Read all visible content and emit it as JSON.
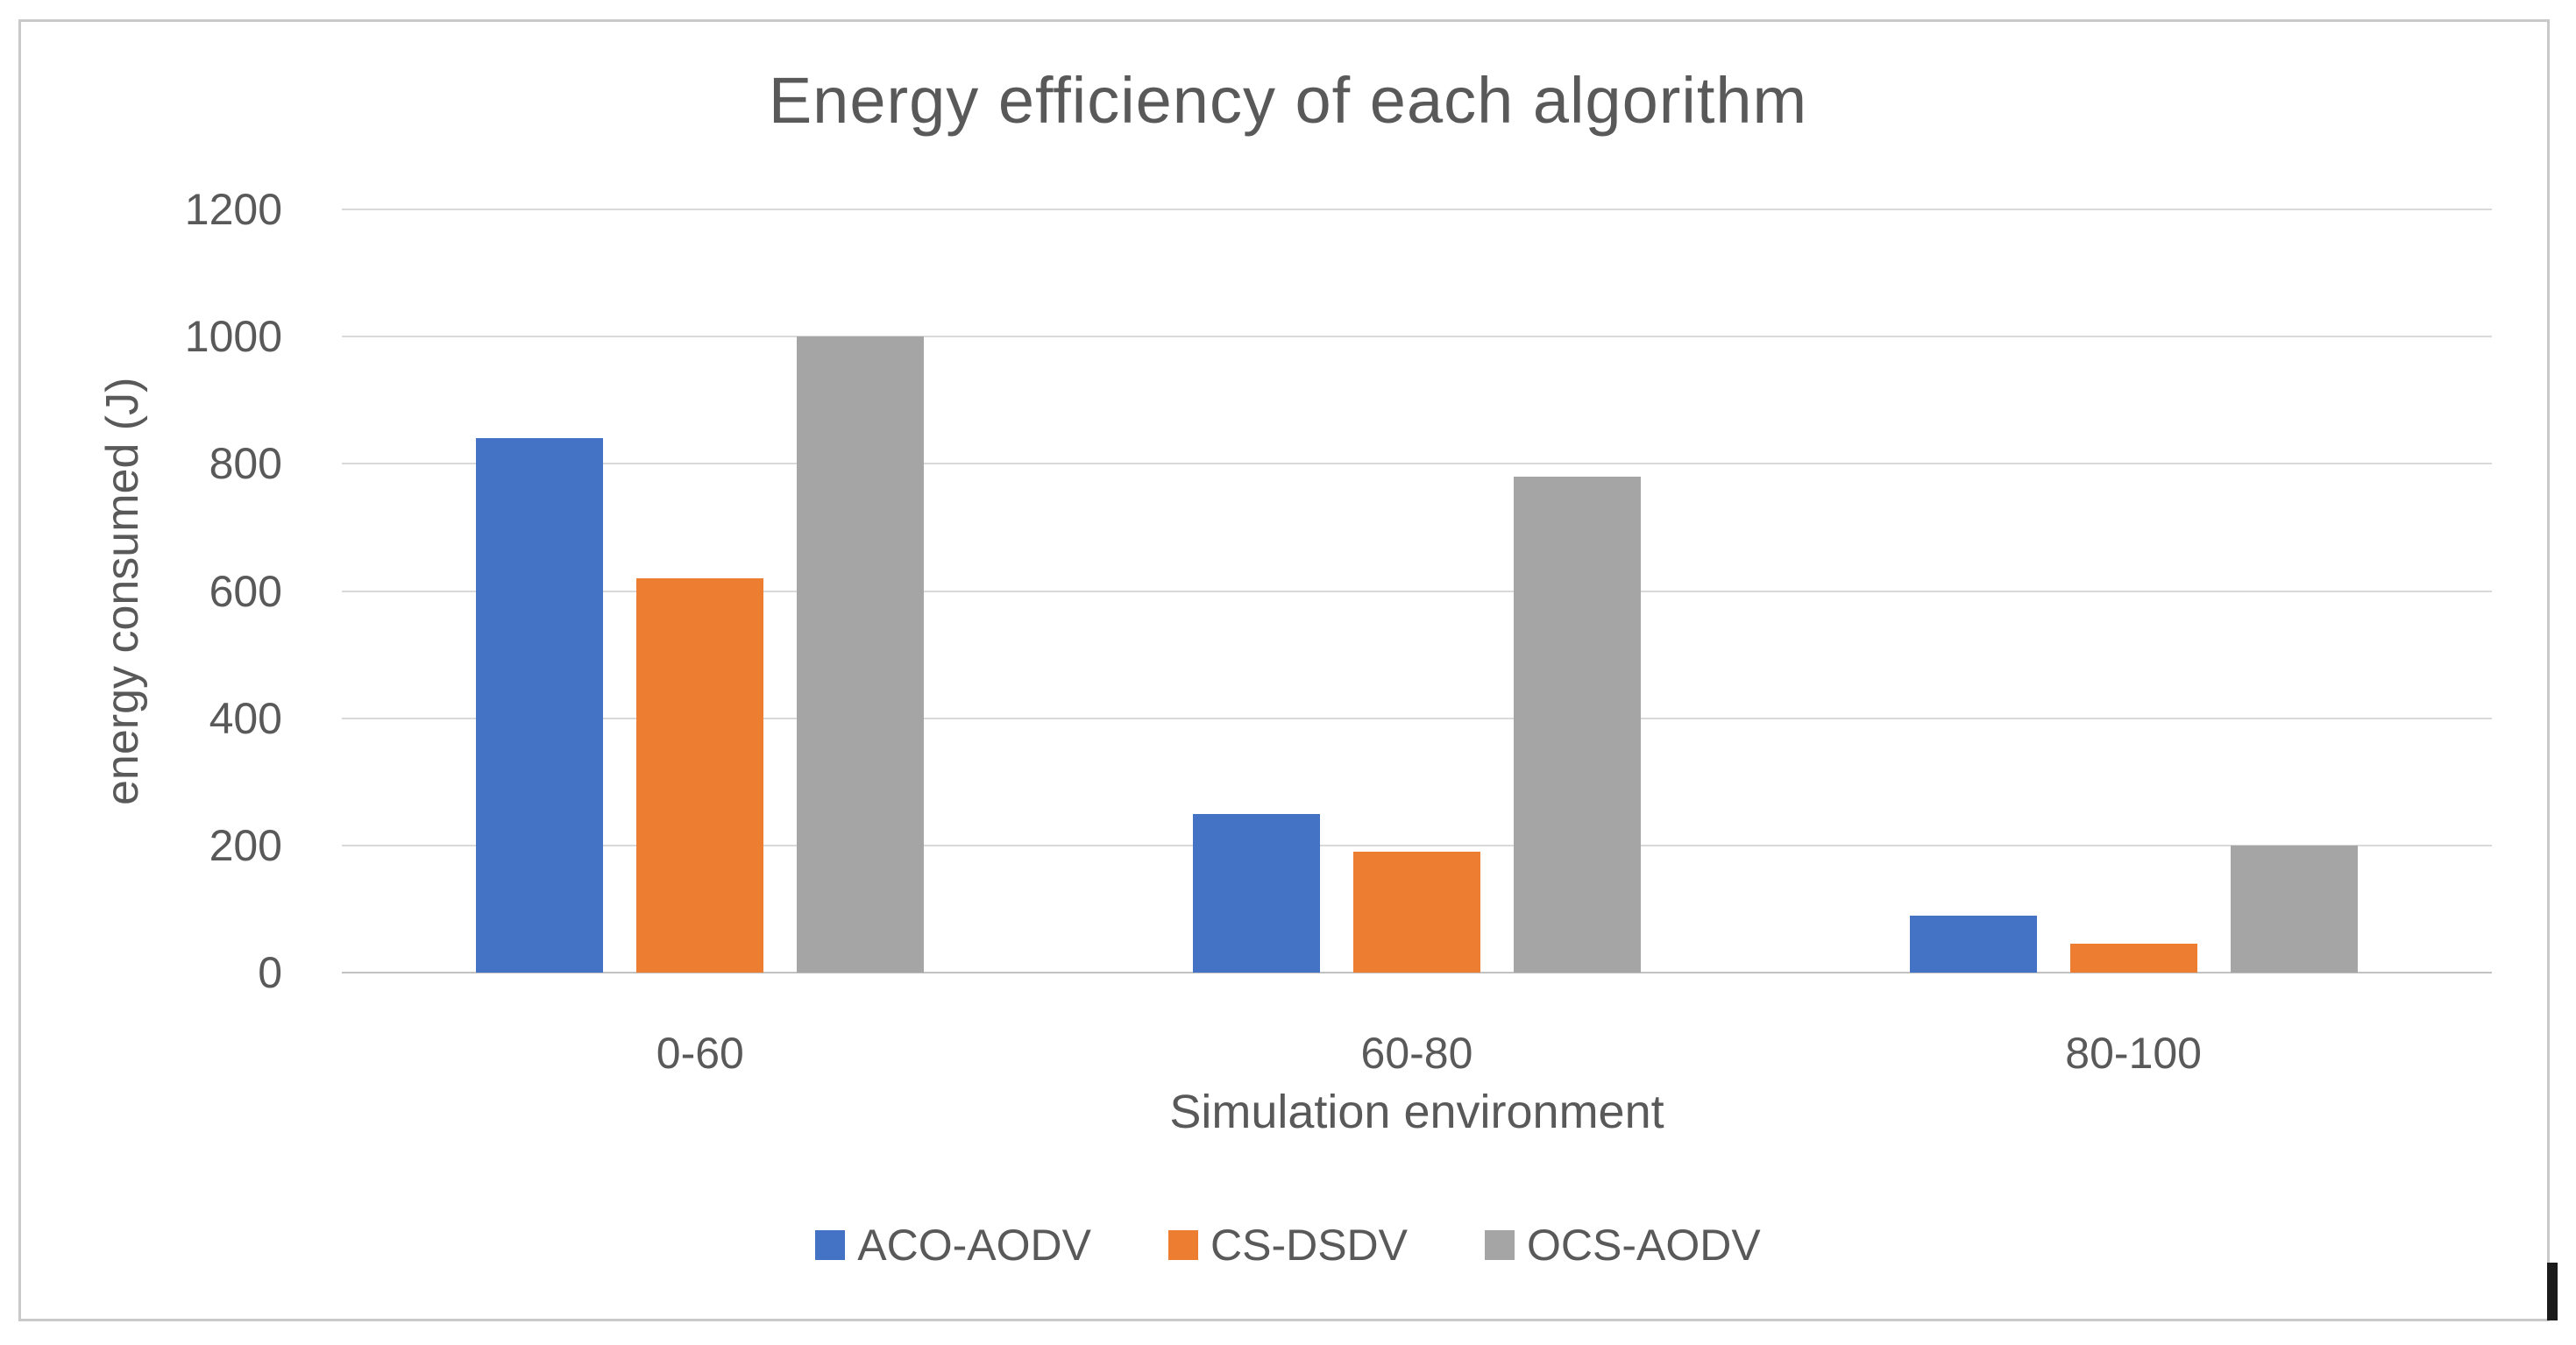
{
  "chart_data": {
    "type": "bar",
    "title": "Energy efficiency of each algorithm",
    "xlabel": "Simulation environment",
    "ylabel": "energy consumed (J)",
    "categories": [
      "0-60",
      "60-80",
      "80-100"
    ],
    "series": [
      {
        "name": "ACO-AODV",
        "color": "#4472C4",
        "values": [
          840,
          250,
          90
        ]
      },
      {
        "name": "CS-DSDV",
        "color": "#ED7D31",
        "values": [
          620,
          190,
          45
        ]
      },
      {
        "name": "OCS-AODV",
        "color": "#A5A5A5",
        "values": [
          1000,
          780,
          200
        ]
      }
    ],
    "ylim": [
      0,
      1200
    ],
    "yticks": [
      0,
      200,
      400,
      600,
      800,
      1000,
      1200
    ],
    "grid": true,
    "legend_position": "bottom",
    "colors": {
      "text": "#595959",
      "gridline": "#d9d9d9",
      "axis_line": "#c2c2c2",
      "frame": "#c9c9c9"
    }
  }
}
